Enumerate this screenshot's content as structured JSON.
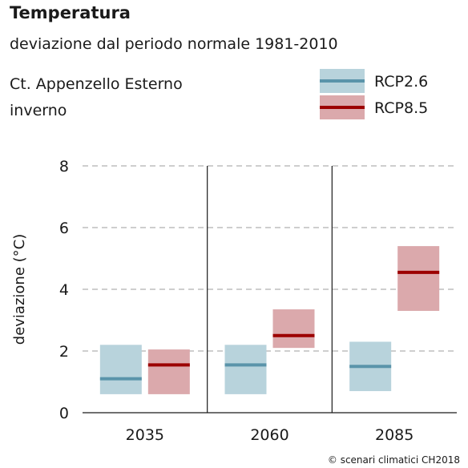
{
  "header": {
    "title": "Temperatura",
    "subtitle": "deviazione dal periodo normale 1981-2010",
    "region": "Ct. Appenzello Esterno",
    "season": "inverno"
  },
  "credit": "© scenari climatici CH2018",
  "colors": {
    "rcp26_box": "#b8d3dc",
    "rcp26_line": "#5a94aa",
    "rcp85_box": "#dba9ac",
    "rcp85_line": "#9c0000",
    "grid": "#b0b0b0",
    "axis": "#1a1a1a"
  },
  "chart_data": {
    "type": "range-bar",
    "title": "Temperatura",
    "ylabel": "deviazione (°C)",
    "ylim": [
      0,
      8
    ],
    "yticks": [
      0,
      2,
      4,
      6,
      8
    ],
    "grid": true,
    "legend_position": "top-right",
    "categories": [
      "2035",
      "2060",
      "2085"
    ],
    "series": [
      {
        "name": "RCP2.6",
        "low": [
          0.6,
          0.6,
          0.7
        ],
        "high": [
          2.2,
          2.2,
          2.3
        ],
        "median": [
          1.1,
          1.55,
          1.5
        ]
      },
      {
        "name": "RCP8.5",
        "low": [
          0.6,
          2.1,
          3.3
        ],
        "high": [
          2.05,
          3.35,
          5.4
        ],
        "median": [
          1.55,
          2.5,
          4.55
        ]
      }
    ]
  }
}
